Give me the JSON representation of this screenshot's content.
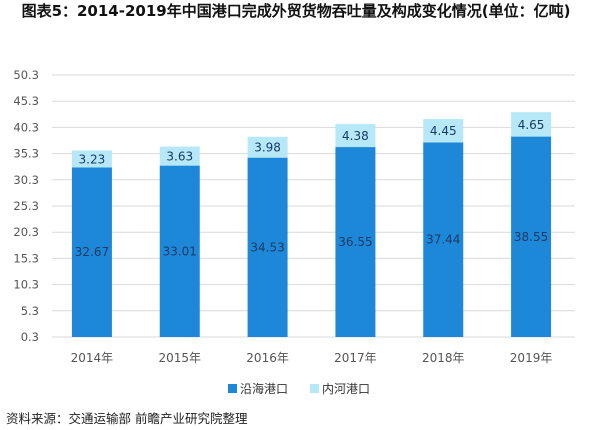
{
  "title": "图表5：2014-2019年中国港口完成外贸货物吞吐量及构成变化情况(单位：亿吨)",
  "source": "资料来源：交通运输部 前瞻产业研究院整理",
  "colors": {
    "coastal": "#1e88d8",
    "inland": "#b6e8f7",
    "grid": "#d9d9d9",
    "axis_text": "#555555",
    "label_text": "#1a3a66"
  },
  "chart_data": {
    "type": "bar",
    "stacked": true,
    "categories": [
      "2014年",
      "2015年",
      "2016年",
      "2017年",
      "2018年",
      "2019年"
    ],
    "series": [
      {
        "name": "沿海港口",
        "values": [
          32.67,
          33.01,
          34.53,
          36.55,
          37.44,
          38.55
        ]
      },
      {
        "name": "内河港口",
        "values": [
          3.23,
          3.63,
          3.98,
          4.38,
          4.45,
          4.65
        ]
      }
    ],
    "yticks": [
      "0.3",
      "5.3",
      "10.3",
      "15.3",
      "20.3",
      "25.3",
      "30.3",
      "35.3",
      "40.3",
      "45.3",
      "50.3"
    ],
    "ylim": [
      0.3,
      50.3
    ],
    "grid": true,
    "legend_position": "bottom"
  }
}
